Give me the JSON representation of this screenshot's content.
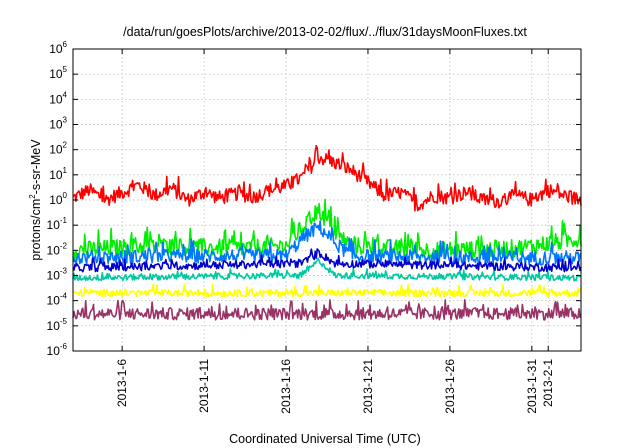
{
  "chart_data": {
    "type": "line",
    "title": "/data/run/goesPlots/archive/2013-02-02/flux/../flux/31daysMoonFluxes.txt",
    "xlabel": "Coordinated Universal Time (UTC)",
    "ylabel": "protons/cm²-s-sr-MeV",
    "ylabel_parts": {
      "pre": "protons/cm",
      "sup": "2",
      "post": "-s-sr-MeV"
    },
    "y_scale": "log",
    "ylim": [
      1e-06,
      1000000.0
    ],
    "y_ticks": [
      {
        "base": "10",
        "exp": "-6",
        "value": 1e-06
      },
      {
        "base": "10",
        "exp": "-5",
        "value": 1e-05
      },
      {
        "base": "10",
        "exp": "-4",
        "value": 0.0001
      },
      {
        "base": "10",
        "exp": "-3",
        "value": 0.001
      },
      {
        "base": "10",
        "exp": "-2",
        "value": 0.01
      },
      {
        "base": "10",
        "exp": "-1",
        "value": 0.1
      },
      {
        "base": "10",
        "exp": "0",
        "value": 1
      },
      {
        "base": "10",
        "exp": "1",
        "value": 10
      },
      {
        "base": "10",
        "exp": "2",
        "value": 100
      },
      {
        "base": "10",
        "exp": "3",
        "value": 1000
      },
      {
        "base": "10",
        "exp": "4",
        "value": 10000
      },
      {
        "base": "10",
        "exp": "5",
        "value": 100000
      },
      {
        "base": "10",
        "exp": "6",
        "value": 1000000
      }
    ],
    "xlim": [
      "2013-01-03",
      "2013-02-03"
    ],
    "x_ticks": [
      "2013-1-6",
      "2013-1-11",
      "2013-1-16",
      "2013-1-21",
      "2013-1-26",
      "2013-1-31",
      "2013-2-1"
    ],
    "grid": true,
    "legend": "none",
    "series": [
      {
        "color": "#ff0000",
        "base": 1.0,
        "points": [
          [
            "2013-01-03",
            1.2
          ],
          [
            "2013-01-04",
            2.5
          ],
          [
            "2013-01-05",
            1.0
          ],
          [
            "2013-01-06",
            2.0
          ],
          [
            "2013-01-07",
            4.0
          ],
          [
            "2013-01-08",
            1.5
          ],
          [
            "2013-01-09",
            3.0
          ],
          [
            "2013-01-10",
            1.0
          ],
          [
            "2013-01-11",
            2.0
          ],
          [
            "2013-01-12",
            1.2
          ],
          [
            "2013-01-13",
            1.8
          ],
          [
            "2013-01-14",
            1.3
          ],
          [
            "2013-01-15",
            2.5
          ],
          [
            "2013-01-16",
            3.5
          ],
          [
            "2013-01-17",
            8.0
          ],
          [
            "2013-01-18",
            50
          ],
          [
            "2013-01-19",
            30
          ],
          [
            "2013-01-20",
            15
          ],
          [
            "2013-01-21",
            5.0
          ],
          [
            "2013-01-22",
            1.5
          ],
          [
            "2013-01-23",
            2.0
          ],
          [
            "2013-01-24",
            0.6
          ],
          [
            "2013-01-25",
            1.5
          ],
          [
            "2013-01-26",
            1.2
          ],
          [
            "2013-01-27",
            2.0
          ],
          [
            "2013-01-28",
            1.0
          ],
          [
            "2013-01-29",
            0.9
          ],
          [
            "2013-01-30",
            1.5
          ],
          [
            "2013-01-31",
            1.0
          ],
          [
            "2013-02-01",
            2.5
          ],
          [
            "2013-02-02",
            1.5
          ],
          [
            "2013-02-03",
            1.0
          ]
        ]
      },
      {
        "color": "#00ee00",
        "base": 0.01,
        "points": [
          [
            "2013-01-03",
            0.01
          ],
          [
            "2013-01-08",
            0.015
          ],
          [
            "2013-01-13",
            0.012
          ],
          [
            "2013-01-16",
            0.015
          ],
          [
            "2013-01-17",
            0.08
          ],
          [
            "2013-01-18",
            0.4
          ],
          [
            "2013-01-19",
            0.05
          ],
          [
            "2013-01-20",
            0.015
          ],
          [
            "2013-01-25",
            0.01
          ],
          [
            "2013-01-30",
            0.012
          ],
          [
            "2013-02-03",
            0.03
          ]
        ]
      },
      {
        "color": "#0077ff",
        "base": 0.005,
        "points": [
          [
            "2013-01-03",
            0.005
          ],
          [
            "2013-01-10",
            0.006
          ],
          [
            "2013-01-16",
            0.006
          ],
          [
            "2013-01-17",
            0.03
          ],
          [
            "2013-01-18",
            0.09
          ],
          [
            "2013-01-19",
            0.02
          ],
          [
            "2013-01-20",
            0.006
          ],
          [
            "2013-01-27",
            0.005
          ],
          [
            "2013-02-03",
            0.005
          ]
        ]
      },
      {
        "color": "#00c8a0",
        "base": 0.0008,
        "points": [
          [
            "2013-01-03",
            0.0008
          ],
          [
            "2013-01-17",
            0.001
          ],
          [
            "2013-01-18",
            0.004
          ],
          [
            "2013-01-19",
            0.001
          ],
          [
            "2013-02-03",
            0.0008
          ]
        ]
      },
      {
        "color": "#0000cc",
        "base": 0.002,
        "points": [
          [
            "2013-01-03",
            0.002
          ],
          [
            "2013-01-17",
            0.003
          ],
          [
            "2013-01-18",
            0.008
          ],
          [
            "2013-01-19",
            0.003
          ],
          [
            "2013-02-03",
            0.002
          ]
        ]
      },
      {
        "color": "#ffff00",
        "base": 0.0002,
        "points": [
          [
            "2013-01-03",
            0.0002
          ],
          [
            "2013-02-03",
            0.0002
          ]
        ]
      },
      {
        "color": "#993366",
        "base": 3e-05,
        "points": [
          [
            "2013-01-03",
            3e-05
          ],
          [
            "2013-01-20",
            3e-05
          ],
          [
            "2013-02-03",
            3e-05
          ]
        ]
      }
    ]
  }
}
